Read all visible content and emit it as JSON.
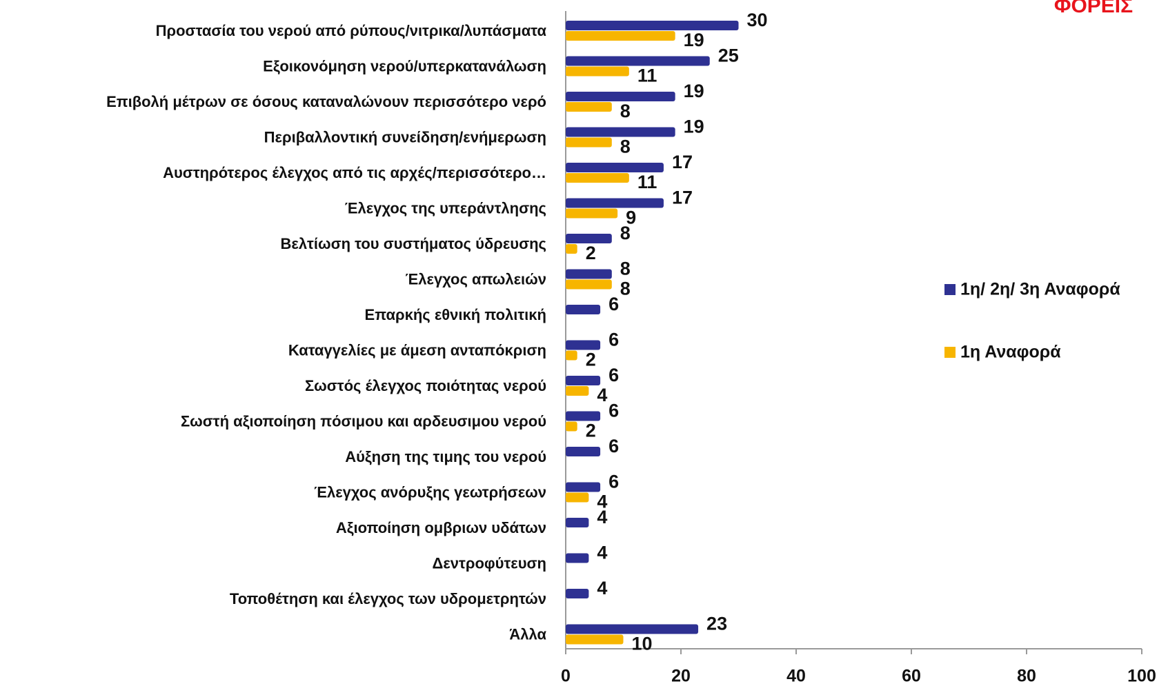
{
  "chart_data": {
    "type": "bar",
    "orientation": "horizontal",
    "title": "ΦΟΡΕΙΣ",
    "categories": [
      "Προστασία του νερού από ρύπους/νιτρικα/λυπάσματα",
      "Εξοικονόμηση νερού/υπερκατανάλωση",
      "Επιβολή μέτρων σε όσους καταναλώνουν περισσότερο νερό",
      "Περιβαλλοντική συνείδηση/ενήμερωση",
      "Αυστηρότερος έλεγχος από τις αρχές/περισσότερο…",
      "Έλεγχος της υπεράντλησης",
      "Βελτίωση του συστήματος ύδρευσης",
      "Έλεγχος απωλειών",
      "Επαρκής εθνική πολιτική",
      "Καταγγελίες με άμεση ανταπόκριση",
      "Σωστός έλεγχος ποιότητας νερού",
      "Σωστή αξιοποίηση πόσιμου και αρδευσιμου νερού",
      "Αύξηση της τιμης του  νερού",
      "Έλεγχος ανόρυξης γεωτρήσεων",
      "Αξιοποίηση ομβριων υδάτων",
      "Δεντροφύτευση",
      "Τοποθέτηση και έλεγχος των υδρομετρητών",
      "Άλλα"
    ],
    "series": [
      {
        "name": "1η/ 2η/ 3η Αναφορά",
        "color": "#2e3192",
        "values": [
          30,
          25,
          19,
          19,
          17,
          17,
          8,
          8,
          6,
          6,
          6,
          6,
          6,
          6,
          4,
          4,
          4,
          23
        ]
      },
      {
        "name": "1η Αναφορά",
        "color": "#f7b500",
        "values": [
          19,
          11,
          8,
          8,
          11,
          9,
          2,
          8,
          null,
          2,
          4,
          2,
          null,
          4,
          null,
          null,
          null,
          10
        ]
      }
    ],
    "xlim": [
      0,
      100
    ],
    "xticks": [
      0,
      20,
      40,
      60,
      80,
      100
    ],
    "grid": false,
    "legend": "right"
  }
}
